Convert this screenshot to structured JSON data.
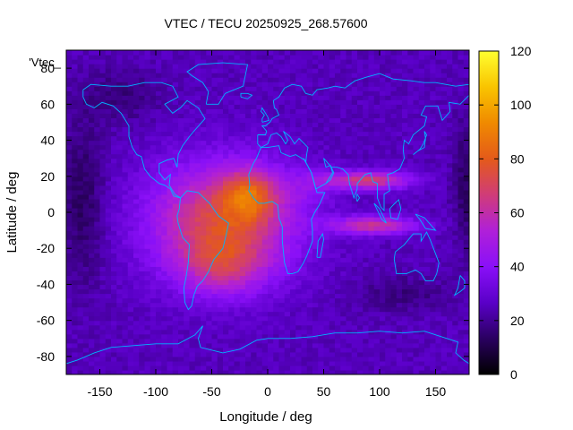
{
  "chart_data": {
    "type": "heatmap",
    "title": "VTEC / TECU 20250925_268.57600",
    "xlabel": "Longitude / deg",
    "ylabel": "Latitude / deg",
    "series_label": "'Vtec_",
    "xlim": [
      -180,
      180
    ],
    "ylim": [
      -90,
      90
    ],
    "xticks": [
      -150,
      -100,
      -50,
      0,
      50,
      100,
      150
    ],
    "yticks": [
      -80,
      -60,
      -40,
      -20,
      0,
      20,
      40,
      60,
      80
    ],
    "colorbar": {
      "range": [
        0,
        120
      ],
      "ticks": [
        0,
        20,
        40,
        60,
        80,
        100,
        120
      ],
      "palette": [
        "#000000",
        "#2a0060",
        "#5a00c8",
        "#8a10f8",
        "#b020d8",
        "#d03c78",
        "#e45a1a",
        "#f08a00",
        "#f9c400",
        "#ffff30"
      ]
    },
    "grid": false,
    "field_description_values": {
      "background_tecu": 25,
      "main_anomaly_center": {
        "lon": -15,
        "lat": 10,
        "peak_tecu": 105
      },
      "southern_crest_center": {
        "lon": -40,
        "lat": -30,
        "peak_tecu": 75
      },
      "asia_band_north": {
        "lon": 90,
        "lat": 18,
        "peak_tecu": 72
      },
      "asia_band_south": {
        "lon": 95,
        "lat": -7,
        "peak_tecu": 68
      },
      "pacific_minimum": {
        "lon": -165,
        "lat": 5,
        "tecu": 10
      }
    },
    "coastline_color": "#00b4ff"
  }
}
